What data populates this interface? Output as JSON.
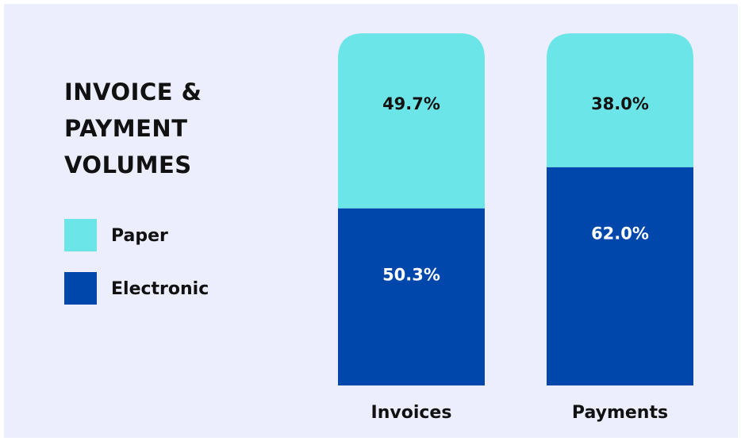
{
  "chart_data": {
    "type": "stacked_bar",
    "title": "INVOICE & PAYMENT VOLUMES",
    "categories": [
      "Invoices",
      "Payments"
    ],
    "series": [
      {
        "name": "Paper",
        "color": "#6ce5e8",
        "values": [
          49.7,
          38.0
        ],
        "value_labels": [
          "49.7%",
          "38.0%"
        ]
      },
      {
        "name": "Electronic",
        "color": "#0047ab",
        "values": [
          50.3,
          62.0
        ],
        "value_labels": [
          "50.3%",
          "62.0%"
        ]
      }
    ]
  }
}
